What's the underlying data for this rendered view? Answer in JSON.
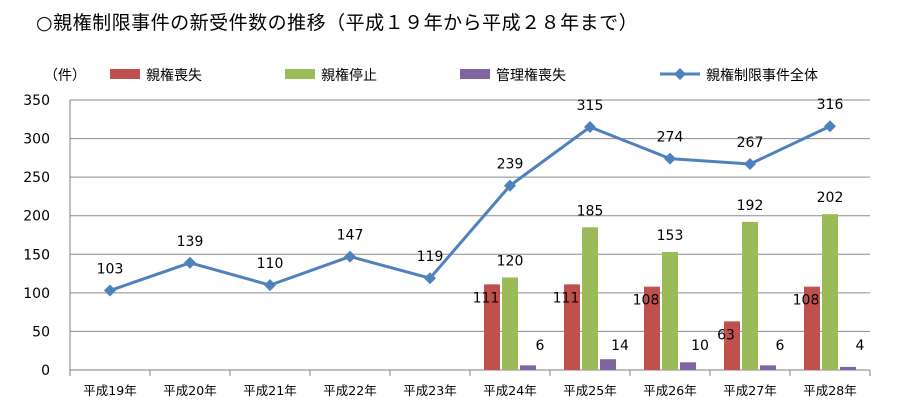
{
  "chart_data": {
    "type": "bar",
    "title": "○親権制限事件の新受件数の推移（平成１９年から平成２８年まで）",
    "ylabel": "（件）",
    "ylim": [
      0,
      350
    ],
    "yticks": [
      0,
      50,
      100,
      150,
      200,
      250,
      300,
      350
    ],
    "grid": true,
    "legend_position": "top",
    "categories": [
      "平成19年",
      "平成20年",
      "平成21年",
      "平成22年",
      "平成23年",
      "平成24年",
      "平成25年",
      "平成26年",
      "平成27年",
      "平成28年"
    ],
    "series": [
      {
        "name": "親権喪失",
        "type": "bar",
        "color": "#c0504d",
        "values": [
          null,
          null,
          null,
          null,
          null,
          111,
          111,
          108,
          63,
          108
        ]
      },
      {
        "name": "親権停止",
        "type": "bar",
        "color": "#9bbb59",
        "values": [
          null,
          null,
          null,
          null,
          null,
          120,
          185,
          153,
          192,
          202
        ]
      },
      {
        "name": "管理権喪失",
        "type": "bar",
        "color": "#8064a2",
        "values": [
          null,
          null,
          null,
          null,
          null,
          6,
          14,
          10,
          6,
          4
        ]
      },
      {
        "name": "親権制限事件全体",
        "type": "line",
        "color": "#4f81bd",
        "values": [
          103,
          139,
          110,
          147,
          119,
          239,
          315,
          274,
          267,
          316
        ]
      }
    ]
  }
}
